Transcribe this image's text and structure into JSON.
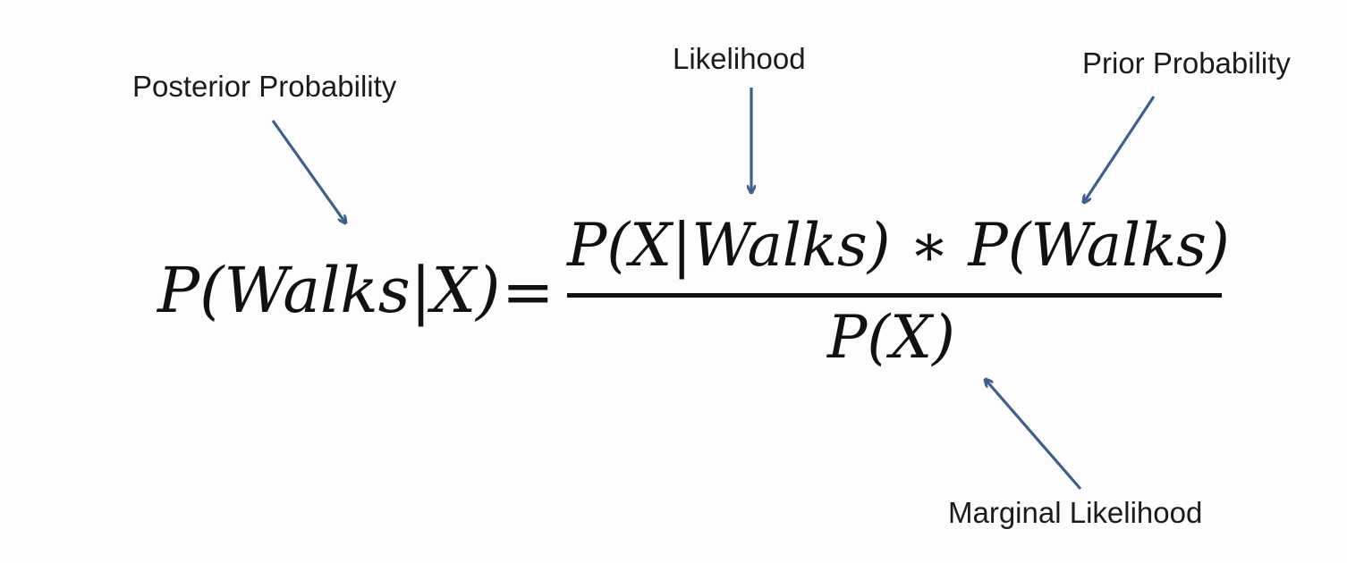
{
  "labels": {
    "posterior": "Posterior Probability",
    "likelihood": "Likelihood",
    "prior": "Prior Probability",
    "marginal": "Marginal Likelihood"
  },
  "equation": {
    "lhs": "P(Walks|X)",
    "equals": "=",
    "numerator": "P(X|Walks) ∗ P(Walks)",
    "denominator": "P(X)"
  },
  "colors": {
    "arrow": "#3e5f8a",
    "text": "#1b1b1b"
  }
}
